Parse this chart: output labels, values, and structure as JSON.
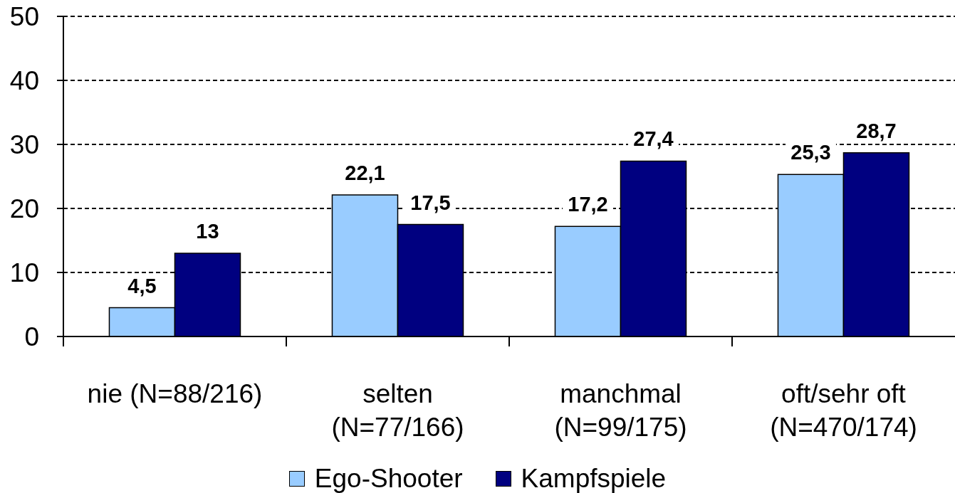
{
  "chart_data": {
    "type": "bar",
    "categories": [
      "nie (N=88/216)",
      "selten\n(N=77/166)",
      "manchmal\n(N=99/175)",
      "oft/sehr oft\n(N=470/174)"
    ],
    "series": [
      {
        "name": "Ego-Shooter",
        "color": "#99ccff",
        "values": [
          4.5,
          22.1,
          17.2,
          25.3
        ],
        "value_labels": [
          "4,5",
          "22,1",
          "17,2",
          "25,3"
        ]
      },
      {
        "name": "Kampfspiele",
        "color": "#000080",
        "values": [
          13,
          17.5,
          27.4,
          28.7
        ],
        "value_labels": [
          "13",
          "17,5",
          "27,4",
          "28,7"
        ]
      }
    ],
    "ylim": [
      0,
      50
    ],
    "yticks": [
      0,
      10,
      20,
      30,
      40,
      50
    ],
    "grid": "y",
    "legend": "bottom"
  }
}
